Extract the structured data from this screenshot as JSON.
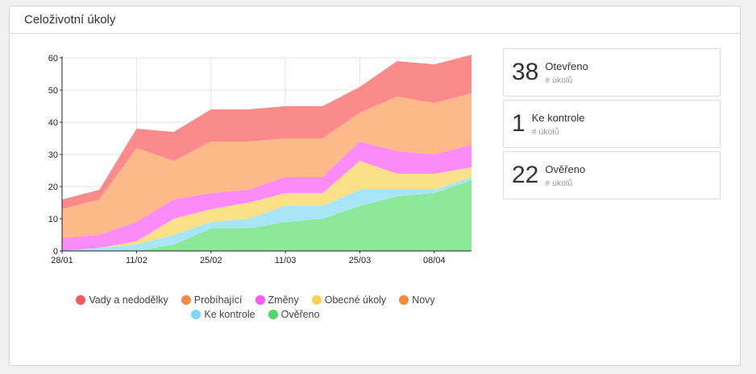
{
  "panel": {
    "title": "Celoživotní úkoly"
  },
  "stats": [
    {
      "value": "38",
      "label": "Otevřeno",
      "sub": "# úkolů"
    },
    {
      "value": "1",
      "label": "Ke kontrole",
      "sub": "# úkolů"
    },
    {
      "value": "22",
      "label": "Ověřeno",
      "sub": "# úkolů"
    }
  ],
  "legend": [
    {
      "name": "Vady a nedodělky",
      "color": "#f05a5a"
    },
    {
      "name": "Probíhající",
      "color": "#f08c46"
    },
    {
      "name": "Změny",
      "color": "#f55cf0"
    },
    {
      "name": "Obecné úkoly",
      "color": "#f5d05a"
    },
    {
      "name": "Novy",
      "color": "#f5893a"
    },
    {
      "name": "Ke kontrole",
      "color": "#7fd6f5"
    },
    {
      "name": "Ověřeno",
      "color": "#4ed66a"
    }
  ],
  "chart_data": {
    "type": "area",
    "stacked": true,
    "title": "",
    "xlabel": "",
    "ylabel": "",
    "ylim": [
      0,
      60
    ],
    "yticks": [
      0,
      10,
      20,
      30,
      40,
      50,
      60
    ],
    "xtick_labels": [
      "28/01",
      "11/02",
      "25/02",
      "11/03",
      "25/03",
      "08/04"
    ],
    "xtick_index": [
      0,
      2,
      4,
      6,
      8,
      10
    ],
    "x": [
      "28/01",
      "04/02",
      "11/02",
      "18/02",
      "25/02",
      "04/03",
      "11/03",
      "18/03",
      "25/03",
      "01/04",
      "08/04",
      "15/04"
    ],
    "grid": true,
    "series": [
      {
        "name": "Ověřeno",
        "color": "#8ee89a",
        "values": [
          0,
          0,
          0,
          2,
          7,
          7,
          9,
          10,
          14,
          17,
          18,
          22
        ]
      },
      {
        "name": "Ke kontrole",
        "color": "#a8e6f7",
        "values": [
          0,
          1,
          2,
          3,
          2,
          3,
          5,
          4,
          5,
          2,
          1,
          1
        ]
      },
      {
        "name": "Obecné úkoly",
        "color": "#fbe08a",
        "values": [
          0,
          0,
          1,
          5,
          4,
          5,
          4,
          4,
          9,
          5,
          5,
          3
        ]
      },
      {
        "name": "Změny",
        "color": "#fb8cf7",
        "values": [
          4,
          4,
          6,
          6,
          5,
          4,
          5,
          5,
          6,
          7,
          6,
          7
        ]
      },
      {
        "name": "Novy",
        "color": "#fdb98a",
        "values": [
          9,
          11,
          23,
          12,
          16,
          15,
          12,
          12,
          9,
          17,
          16,
          16
        ]
      },
      {
        "name": "Vady a nedodělky",
        "color": "#fb8a8a",
        "values": [
          3,
          3,
          6,
          9,
          10,
          10,
          10,
          10,
          8,
          11,
          12,
          12
        ]
      }
    ]
  }
}
